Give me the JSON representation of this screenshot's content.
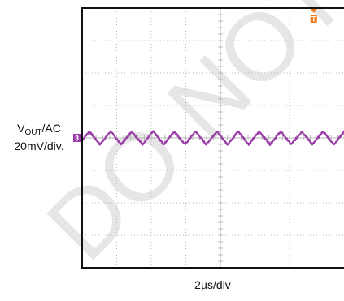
{
  "chart_data": {
    "type": "line",
    "title": "",
    "xlabel": "2µs/div",
    "ylabel": {
      "main": "V",
      "subscript": "OUT",
      "suffix": "/AC",
      "scale": "20mV/div."
    },
    "x_divisions": 8,
    "y_divisions": 8,
    "xlim": [
      0,
      8
    ],
    "ylim": [
      -4,
      4
    ],
    "grid": true,
    "series": [
      {
        "channel_marker": "3",
        "color": "#9b3fa8",
        "period_div": 0.615,
        "amplitude_div": 0.2,
        "offset_div": 0.0,
        "phase_div": 0.1
      }
    ],
    "trigger_marker": {
      "glyph": "T",
      "color": "#f07a1a",
      "x_div": 6.7
    },
    "watermark": "DO NOT",
    "watermark_color": "#e6e6e6"
  }
}
